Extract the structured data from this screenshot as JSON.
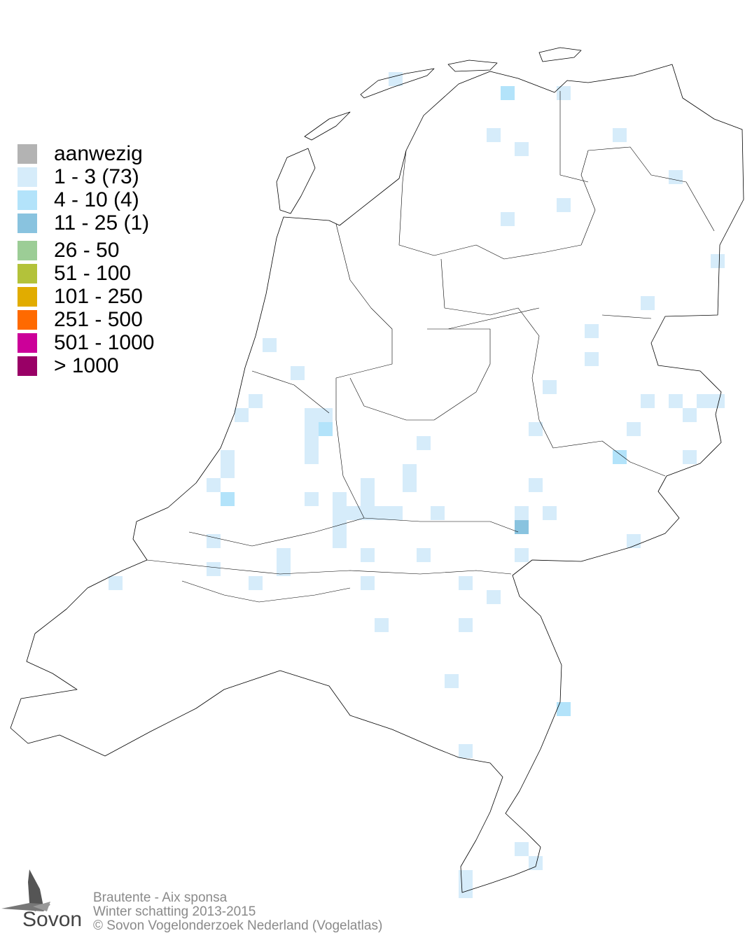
{
  "legend": {
    "items": [
      {
        "label": "aanwezig",
        "color": "#b3b3b3"
      },
      {
        "label": "1 - 3 (73)",
        "color": "#d6ecfa"
      },
      {
        "label": "4 - 10 (4)",
        "color": "#b3e3fa"
      },
      {
        "label": "11 - 25 (1)",
        "color": "#89c3df"
      },
      {
        "label": "26 - 50",
        "color": "#9ccd96"
      },
      {
        "label": "51 - 100",
        "color": "#b3c23a"
      },
      {
        "label": "101 - 250",
        "color": "#e1ac00"
      },
      {
        "label": "251 - 500",
        "color": "#ff6a00"
      },
      {
        "label": "501 - 1000",
        "color": "#cc0099"
      },
      {
        "label": "> 1000",
        "color": "#990066"
      }
    ]
  },
  "footer": {
    "species": "Brautente - Aix sponsa",
    "survey": "Winter schatting 2013-2015",
    "copyright": "© Sovon Vogelonderzoek Nederland (Vogelatlas)"
  },
  "logo": {
    "text": "Sovon"
  }
}
